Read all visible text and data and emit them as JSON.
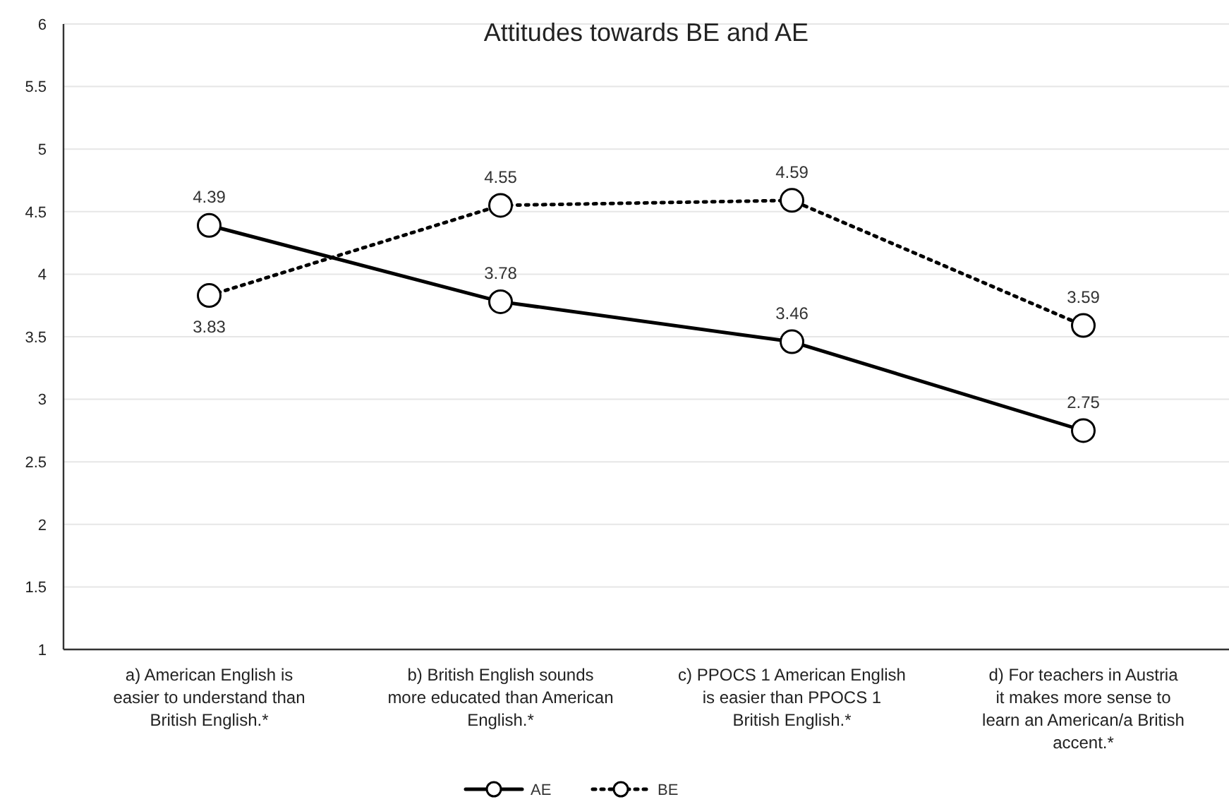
{
  "chart_data": {
    "type": "line",
    "title": "Attitudes towards BE and AE",
    "categories": [
      "a) American English is easier to understand than British English.*",
      "b) British English sounds more educated than American English.*",
      "c) PPOCS 1 American English is easier than PPOCS 1 British English.*",
      "d) For teachers in Austria it makes more sense to learn an American/a British accent.*"
    ],
    "series": [
      {
        "name": "AE",
        "color": "#000000",
        "values": [
          4.39,
          3.78,
          3.46,
          2.75
        ],
        "line_style": "solid"
      },
      {
        "name": "BE",
        "color": "#000000",
        "values": [
          3.83,
          4.55,
          4.59,
          3.59
        ],
        "line_style": "dotted"
      }
    ],
    "ylim": [
      1,
      6
    ],
    "yticks": [
      1,
      1.5,
      2,
      2.5,
      3,
      3.5,
      4,
      4.5,
      5,
      5.5,
      6
    ],
    "grid": "y",
    "legend": "bottom",
    "marker": "circle",
    "data_labels": true
  }
}
